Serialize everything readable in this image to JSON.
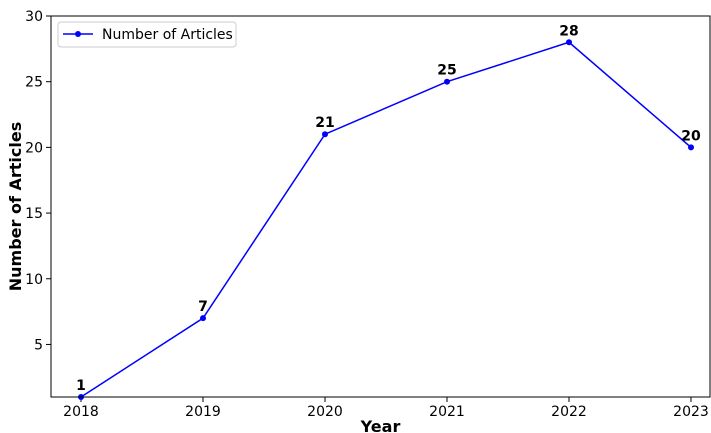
{
  "chart_data": {
    "type": "line",
    "title": "",
    "xlabel": "Year",
    "ylabel": "Number of Articles",
    "x": [
      "2018",
      "2019",
      "2020",
      "2021",
      "2022",
      "2023"
    ],
    "series": [
      {
        "name": "Number of Articles",
        "values": [
          1,
          7,
          21,
          25,
          28,
          20
        ],
        "color": "#0000ff"
      }
    ],
    "data_labels": [
      "1",
      "7",
      "21",
      "25",
      "28",
      "20"
    ],
    "yticks": [
      "5",
      "10",
      "15",
      "20",
      "25",
      "30"
    ],
    "ylim": [
      1,
      30
    ],
    "grid": false,
    "legend_position": "top-left"
  }
}
